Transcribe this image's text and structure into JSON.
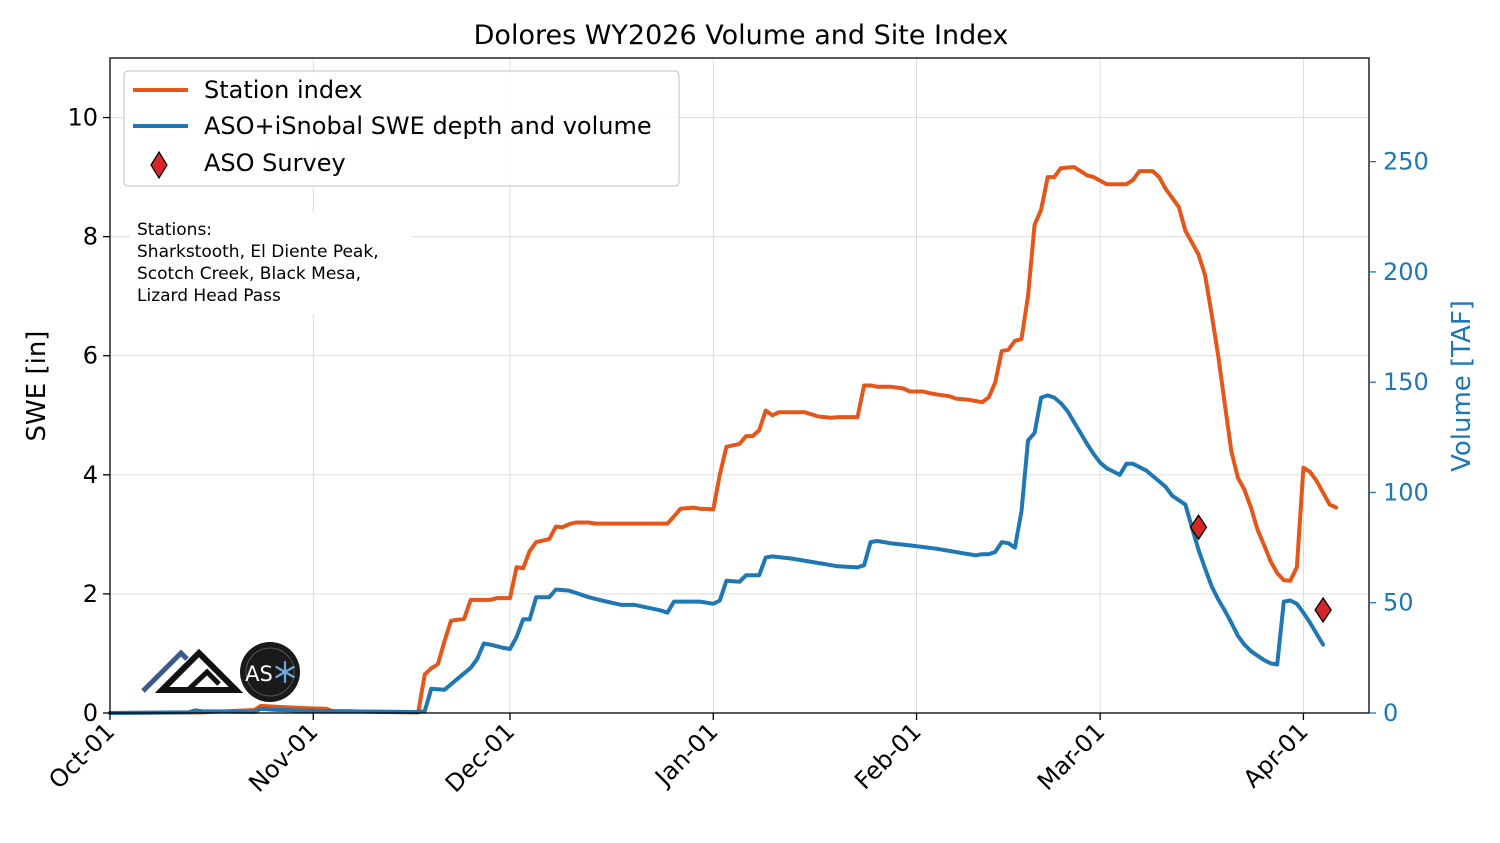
{
  "chart_data": {
    "type": "line",
    "title": "Dolores WY2026 Volume and Site Index",
    "ylabel": "SWE [in]",
    "y2label": "Volume [TAF]",
    "xlabel": "",
    "ylim": [
      0,
      11
    ],
    "y2lim": [
      0,
      297
    ],
    "xlim": [
      "2025-10-01",
      "2026-04-11"
    ],
    "yticks": [
      0,
      2,
      4,
      6,
      8,
      10
    ],
    "y2ticks": [
      0,
      50,
      100,
      150,
      200,
      250
    ],
    "xticks": [
      {
        "date": "2025-10-01",
        "label": "Oct-01"
      },
      {
        "date": "2025-11-01",
        "label": "Nov-01"
      },
      {
        "date": "2025-12-01",
        "label": "Dec-01"
      },
      {
        "date": "2026-01-01",
        "label": "Jan-01"
      },
      {
        "date": "2026-02-01",
        "label": "Feb-01"
      },
      {
        "date": "2026-03-01",
        "label": "Mar-01"
      },
      {
        "date": "2026-04-01",
        "label": "Apr-01"
      }
    ],
    "grid": true,
    "legend_position": "top-left",
    "colors": {
      "station": "#e4561a",
      "volume": "#1f77b4",
      "survey": "#d62728",
      "right_axis": "#1f77b4"
    },
    "series": [
      {
        "name": "Station index",
        "axis": "left",
        "points": [
          [
            "2025-10-01",
            0
          ],
          [
            "2025-10-15",
            0.01
          ],
          [
            "2025-10-23",
            0.05
          ],
          [
            "2025-10-24",
            0.12
          ],
          [
            "2025-10-27",
            0.1
          ],
          [
            "2025-10-31",
            0.08
          ],
          [
            "2025-11-03",
            0.07
          ],
          [
            "2025-11-04",
            0.03
          ],
          [
            "2025-11-06",
            0.03
          ],
          [
            "2025-11-16",
            0.01
          ],
          [
            "2025-11-17",
            0.01
          ],
          [
            "2025-11-18",
            0.65
          ],
          [
            "2025-11-19",
            0.75
          ],
          [
            "2025-11-20",
            0.82
          ],
          [
            "2025-11-21",
            1.2
          ],
          [
            "2025-11-22",
            1.55
          ],
          [
            "2025-11-24",
            1.58
          ],
          [
            "2025-11-25",
            1.9
          ],
          [
            "2025-11-28",
            1.9
          ],
          [
            "2025-11-29",
            1.93
          ],
          [
            "2025-12-01",
            1.93
          ],
          [
            "2025-12-02",
            2.45
          ],
          [
            "2025-12-03",
            2.43
          ],
          [
            "2025-12-04",
            2.72
          ],
          [
            "2025-12-05",
            2.87
          ],
          [
            "2025-12-07",
            2.92
          ],
          [
            "2025-12-08",
            3.13
          ],
          [
            "2025-12-09",
            3.12
          ],
          [
            "2025-12-10",
            3.17
          ],
          [
            "2025-12-11",
            3.2
          ],
          [
            "2025-12-13",
            3.2
          ],
          [
            "2025-12-14",
            3.18
          ],
          [
            "2025-12-25",
            3.18
          ],
          [
            "2025-12-26",
            3.3
          ],
          [
            "2025-12-27",
            3.43
          ],
          [
            "2025-12-29",
            3.45
          ],
          [
            "2025-12-30",
            3.43
          ],
          [
            "2026-01-01",
            3.42
          ],
          [
            "2026-01-02",
            4.0
          ],
          [
            "2026-01-03",
            4.47
          ],
          [
            "2026-01-05",
            4.52
          ],
          [
            "2026-01-06",
            4.65
          ],
          [
            "2026-01-07",
            4.65
          ],
          [
            "2026-01-08",
            4.75
          ],
          [
            "2026-01-09",
            5.08
          ],
          [
            "2026-01-10",
            5.0
          ],
          [
            "2026-01-11",
            5.05
          ],
          [
            "2026-01-15",
            5.05
          ],
          [
            "2026-01-17",
            4.98
          ],
          [
            "2026-01-19",
            4.96
          ],
          [
            "2026-01-20",
            4.97
          ],
          [
            "2026-01-23",
            4.97
          ],
          [
            "2026-01-24",
            5.5
          ],
          [
            "2026-01-25",
            5.5
          ],
          [
            "2026-01-26",
            5.48
          ],
          [
            "2026-01-28",
            5.48
          ],
          [
            "2026-01-30",
            5.45
          ],
          [
            "2026-01-31",
            5.4
          ],
          [
            "2026-02-02",
            5.4
          ],
          [
            "2026-02-03",
            5.37
          ],
          [
            "2026-02-04",
            5.35
          ],
          [
            "2026-02-06",
            5.32
          ],
          [
            "2026-02-07",
            5.28
          ],
          [
            "2026-02-09",
            5.26
          ],
          [
            "2026-02-11",
            5.22
          ],
          [
            "2026-02-12",
            5.3
          ],
          [
            "2026-02-13",
            5.55
          ],
          [
            "2026-02-14",
            6.08
          ],
          [
            "2026-02-15",
            6.1
          ],
          [
            "2026-02-16",
            6.25
          ],
          [
            "2026-02-17",
            6.28
          ],
          [
            "2026-02-18",
            7.0
          ],
          [
            "2026-02-19",
            8.2
          ],
          [
            "2026-02-20",
            8.45
          ],
          [
            "2026-02-21",
            9.0
          ],
          [
            "2026-02-22",
            9.0
          ],
          [
            "2026-02-23",
            9.15
          ],
          [
            "2026-02-25",
            9.17
          ],
          [
            "2026-02-26",
            9.1
          ],
          [
            "2026-02-27",
            9.03
          ],
          [
            "2026-02-28",
            9.0
          ],
          [
            "2026-03-02",
            8.88
          ],
          [
            "2026-03-05",
            8.88
          ],
          [
            "2026-03-06",
            8.95
          ],
          [
            "2026-03-07",
            9.1
          ],
          [
            "2026-03-09",
            9.1
          ],
          [
            "2026-03-10",
            9.0
          ],
          [
            "2026-03-11",
            8.8
          ],
          [
            "2026-03-13",
            8.5
          ],
          [
            "2026-03-14",
            8.1
          ],
          [
            "2026-03-15",
            7.9
          ],
          [
            "2026-03-16",
            7.7
          ],
          [
            "2026-03-17",
            7.35
          ],
          [
            "2026-03-18",
            6.7
          ],
          [
            "2026-03-19",
            6.0
          ],
          [
            "2026-03-20",
            5.2
          ],
          [
            "2026-03-21",
            4.4
          ],
          [
            "2026-03-22",
            3.95
          ],
          [
            "2026-03-23",
            3.75
          ],
          [
            "2026-03-24",
            3.45
          ],
          [
            "2026-03-25",
            3.08
          ],
          [
            "2026-03-26",
            2.82
          ],
          [
            "2026-03-27",
            2.55
          ],
          [
            "2026-03-28",
            2.35
          ],
          [
            "2026-03-29",
            2.23
          ],
          [
            "2026-03-30",
            2.22
          ],
          [
            "2026-03-31",
            2.45
          ],
          [
            "2026-04-01",
            4.12
          ],
          [
            "2026-04-02",
            4.05
          ],
          [
            "2026-04-03",
            3.9
          ],
          [
            "2026-04-04",
            3.7
          ],
          [
            "2026-04-05",
            3.5
          ],
          [
            "2026-04-06",
            3.45
          ]
        ]
      },
      {
        "name": "ASO+iSnobal SWE depth and volume",
        "axis": "right",
        "points": [
          [
            "2025-10-01",
            0
          ],
          [
            "2025-10-13",
            0.3
          ],
          [
            "2025-10-14",
            1.2
          ],
          [
            "2025-10-15",
            0.8
          ],
          [
            "2025-10-23",
            0.5
          ],
          [
            "2025-10-24",
            1.9
          ],
          [
            "2025-10-26",
            1.5
          ],
          [
            "2025-10-31",
            1
          ],
          [
            "2025-11-02",
            0.9
          ],
          [
            "2025-11-17",
            0.4
          ],
          [
            "2025-11-18",
            1
          ],
          [
            "2025-11-19",
            11
          ],
          [
            "2025-11-21",
            10.5
          ],
          [
            "2025-11-22",
            13
          ],
          [
            "2025-11-23",
            15.5
          ],
          [
            "2025-11-25",
            20.5
          ],
          [
            "2025-11-26",
            24.5
          ],
          [
            "2025-11-27",
            31.5
          ],
          [
            "2025-11-28",
            31
          ],
          [
            "2025-11-30",
            29.5
          ],
          [
            "2025-12-01",
            29
          ],
          [
            "2025-12-02",
            34.5
          ],
          [
            "2025-12-03",
            42.5
          ],
          [
            "2025-12-04",
            42.5
          ],
          [
            "2025-12-05",
            52.5
          ],
          [
            "2025-12-07",
            52.5
          ],
          [
            "2025-12-08",
            56
          ],
          [
            "2025-12-10",
            55.5
          ],
          [
            "2025-12-13",
            52.5
          ],
          [
            "2025-12-15",
            51
          ],
          [
            "2025-12-18",
            49
          ],
          [
            "2025-12-20",
            49
          ],
          [
            "2025-12-24",
            46.5
          ],
          [
            "2025-12-25",
            45.5
          ],
          [
            "2025-12-26",
            50.5
          ],
          [
            "2025-12-28",
            50.5
          ],
          [
            "2025-12-30",
            50.5
          ],
          [
            "2026-01-01",
            49.5
          ],
          [
            "2026-01-02",
            51
          ],
          [
            "2026-01-03",
            60
          ],
          [
            "2026-01-05",
            59.5
          ],
          [
            "2026-01-06",
            62.5
          ],
          [
            "2026-01-08",
            62.5
          ],
          [
            "2026-01-09",
            70.5
          ],
          [
            "2026-01-10",
            71
          ],
          [
            "2026-01-13",
            70
          ],
          [
            "2026-01-17",
            68
          ],
          [
            "2026-01-20",
            66.5
          ],
          [
            "2026-01-23",
            66
          ],
          [
            "2026-01-24",
            67
          ],
          [
            "2026-01-25",
            77.5
          ],
          [
            "2026-01-26",
            78
          ],
          [
            "2026-01-28",
            77
          ],
          [
            "2026-01-31",
            76
          ],
          [
            "2026-02-04",
            74.5
          ],
          [
            "2026-02-08",
            72.5
          ],
          [
            "2026-02-10",
            71.5
          ],
          [
            "2026-02-11",
            72
          ],
          [
            "2026-02-12",
            72
          ],
          [
            "2026-02-13",
            73
          ],
          [
            "2026-02-14",
            77.5
          ],
          [
            "2026-02-15",
            77
          ],
          [
            "2026-02-16",
            75
          ],
          [
            "2026-02-17",
            91.5
          ],
          [
            "2026-02-18",
            123.5
          ],
          [
            "2026-02-19",
            127
          ],
          [
            "2026-02-20",
            143
          ],
          [
            "2026-02-21",
            144
          ],
          [
            "2026-02-22",
            143
          ],
          [
            "2026-02-23",
            140.5
          ],
          [
            "2026-02-24",
            137
          ],
          [
            "2026-02-25",
            132
          ],
          [
            "2026-02-26",
            127
          ],
          [
            "2026-02-27",
            122
          ],
          [
            "2026-02-28",
            117.5
          ],
          [
            "2026-03-01",
            113.5
          ],
          [
            "2026-03-02",
            111
          ],
          [
            "2026-03-03",
            109.5
          ],
          [
            "2026-03-04",
            108
          ],
          [
            "2026-03-05",
            113
          ],
          [
            "2026-03-06",
            113
          ],
          [
            "2026-03-07",
            111.5
          ],
          [
            "2026-03-08",
            110
          ],
          [
            "2026-03-09",
            107.5
          ],
          [
            "2026-03-10",
            105
          ],
          [
            "2026-03-11",
            102.5
          ],
          [
            "2026-03-12",
            98.5
          ],
          [
            "2026-03-13",
            96.5
          ],
          [
            "2026-03-14",
            94.5
          ],
          [
            "2026-03-15",
            84
          ],
          [
            "2026-03-16",
            74
          ],
          [
            "2026-03-17",
            65.5
          ],
          [
            "2026-03-18",
            57.5
          ],
          [
            "2026-03-19",
            51.5
          ],
          [
            "2026-03-20",
            46.5
          ],
          [
            "2026-03-21",
            41
          ],
          [
            "2026-03-22",
            35
          ],
          [
            "2026-03-23",
            31
          ],
          [
            "2026-03-24",
            28
          ],
          [
            "2026-03-25",
            26
          ],
          [
            "2026-03-26",
            24
          ],
          [
            "2026-03-27",
            22.5
          ],
          [
            "2026-03-28",
            22
          ],
          [
            "2026-03-29",
            50.5
          ],
          [
            "2026-03-30",
            51
          ],
          [
            "2026-03-31",
            49.5
          ],
          [
            "2026-04-01",
            45.5
          ],
          [
            "2026-04-02",
            41
          ],
          [
            "2026-04-03",
            36
          ],
          [
            "2026-04-04",
            31
          ]
        ]
      }
    ],
    "markers": {
      "name": "ASO Survey",
      "axis": "left",
      "points": [
        [
          "2026-03-16",
          3.12
        ],
        [
          "2026-04-04",
          1.73
        ]
      ]
    },
    "note": {
      "lines": [
        "Stations:",
        "Sharkstooth, El Diente Peak,",
        "Scotch Creek, Black Mesa,",
        "Lizard Head Pass"
      ]
    },
    "logos": [
      {
        "icon": "mountain-logo-icon"
      },
      {
        "icon": "aso-logo-icon",
        "text": "AS"
      }
    ]
  }
}
